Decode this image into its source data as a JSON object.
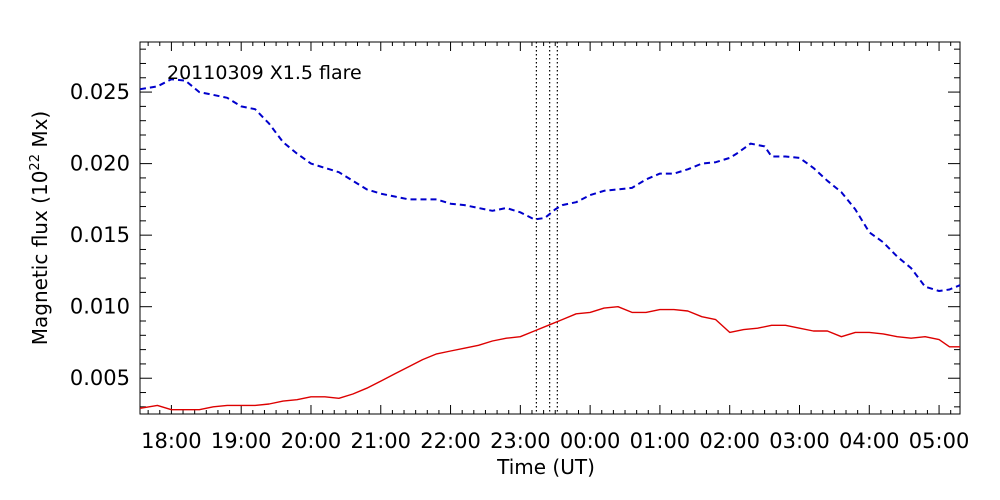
{
  "chart_data": {
    "type": "line",
    "annotation": "20110309  X1.5  flare",
    "xlabel": "Time  (UT)",
    "ylabel_main": "Magnetic  flux  (10",
    "ylabel_sup": "22",
    "ylabel_unit": " Mx)",
    "xlim": [
      17.55,
      29.3
    ],
    "ylim": [
      0.0025,
      0.0285
    ],
    "xtick_values": [
      18,
      19,
      20,
      21,
      22,
      23,
      24,
      25,
      26,
      27,
      28,
      29
    ],
    "xtick_labels": [
      "18:00",
      "19:00",
      "20:00",
      "21:00",
      "22:00",
      "23:00",
      "00:00",
      "01:00",
      "02:00",
      "03:00",
      "04:00",
      "05:00"
    ],
    "ytick_values": [
      0.005,
      0.01,
      0.015,
      0.02,
      0.025
    ],
    "ytick_labels": [
      "0.005",
      "0.010",
      "0.015",
      "0.020",
      "0.025"
    ],
    "flare_markers_x": [
      23.23,
      23.42,
      23.53
    ],
    "grid": false,
    "series": [
      {
        "color": "#0000cc",
        "dash": "dashed",
        "x": [
          17.55,
          17.8,
          18.0,
          18.2,
          18.4,
          18.6,
          18.8,
          19.0,
          19.2,
          19.4,
          19.6,
          19.8,
          20.0,
          20.2,
          20.4,
          20.6,
          20.8,
          21.0,
          21.2,
          21.4,
          21.6,
          21.8,
          22.0,
          22.2,
          22.4,
          22.6,
          22.8,
          23.0,
          23.2,
          23.35,
          23.5,
          23.6,
          23.8,
          24.0,
          24.2,
          24.4,
          24.6,
          24.8,
          25.0,
          25.2,
          25.4,
          25.6,
          25.8,
          26.0,
          26.1,
          26.3,
          26.5,
          26.6,
          26.8,
          27.0,
          27.2,
          27.4,
          27.6,
          27.8,
          28.0,
          28.2,
          28.4,
          28.6,
          28.8,
          29.0,
          29.15,
          29.3
        ],
        "y": [
          0.0252,
          0.0254,
          0.0259,
          0.0258,
          0.025,
          0.0248,
          0.0246,
          0.024,
          0.0238,
          0.0228,
          0.0215,
          0.0207,
          0.02,
          0.0197,
          0.0194,
          0.0188,
          0.0182,
          0.0179,
          0.0177,
          0.0175,
          0.0175,
          0.0175,
          0.0172,
          0.0171,
          0.0169,
          0.0167,
          0.0169,
          0.0166,
          0.0161,
          0.0162,
          0.0168,
          0.0171,
          0.0173,
          0.0178,
          0.0181,
          0.0182,
          0.0183,
          0.0189,
          0.0193,
          0.0193,
          0.0196,
          0.02,
          0.0201,
          0.0204,
          0.0207,
          0.0214,
          0.0212,
          0.0205,
          0.0205,
          0.0204,
          0.0197,
          0.0188,
          0.018,
          0.0168,
          0.0152,
          0.0145,
          0.0135,
          0.0127,
          0.0114,
          0.0111,
          0.0112,
          0.0115
        ]
      },
      {
        "color": "#dd0000",
        "dash": "solid",
        "x": [
          17.55,
          17.8,
          18.0,
          18.2,
          18.4,
          18.6,
          18.8,
          19.0,
          19.2,
          19.4,
          19.6,
          19.8,
          20.0,
          20.2,
          20.4,
          20.6,
          20.8,
          21.0,
          21.2,
          21.4,
          21.6,
          21.8,
          22.0,
          22.2,
          22.4,
          22.6,
          22.8,
          23.0,
          23.2,
          23.4,
          23.6,
          23.8,
          24.0,
          24.2,
          24.4,
          24.6,
          24.8,
          25.0,
          25.2,
          25.4,
          25.6,
          25.8,
          26.0,
          26.2,
          26.4,
          26.6,
          26.8,
          27.0,
          27.2,
          27.4,
          27.6,
          27.8,
          28.0,
          28.2,
          28.4,
          28.6,
          28.8,
          29.0,
          29.15,
          29.3
        ],
        "y": [
          0.0029,
          0.0031,
          0.0028,
          0.0028,
          0.0028,
          0.003,
          0.0031,
          0.0031,
          0.0031,
          0.0032,
          0.0034,
          0.0035,
          0.0037,
          0.0037,
          0.0036,
          0.0039,
          0.0043,
          0.0048,
          0.0053,
          0.0058,
          0.0063,
          0.0067,
          0.0069,
          0.0071,
          0.0073,
          0.0076,
          0.0078,
          0.0079,
          0.0083,
          0.0087,
          0.0091,
          0.0095,
          0.0096,
          0.0099,
          0.01,
          0.0096,
          0.0096,
          0.0098,
          0.0098,
          0.0097,
          0.0093,
          0.0091,
          0.0082,
          0.0084,
          0.0085,
          0.0087,
          0.0087,
          0.0085,
          0.0083,
          0.0083,
          0.0079,
          0.0082,
          0.0082,
          0.0081,
          0.0079,
          0.0078,
          0.0079,
          0.0077,
          0.0072,
          0.0072
        ]
      }
    ]
  }
}
